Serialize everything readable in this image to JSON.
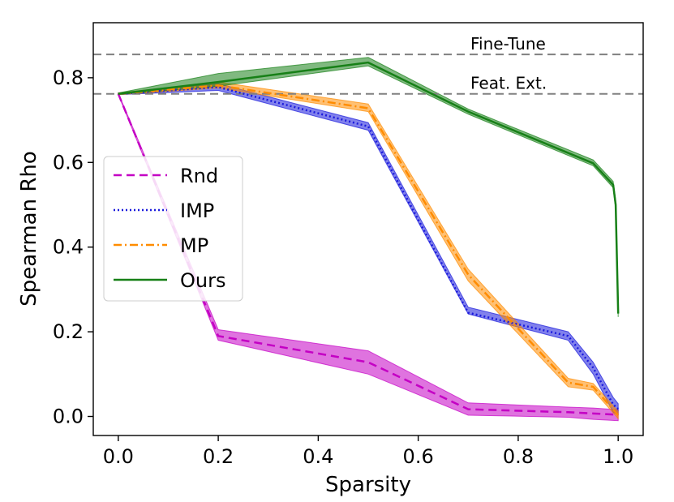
{
  "chart_data": {
    "type": "line",
    "title": "",
    "xlabel": "Sparsity",
    "ylabel": "Spearman Rho",
    "xlim": [
      -0.05,
      1.05
    ],
    "ylim": [
      -0.045,
      0.93
    ],
    "xticks": [
      0.0,
      0.2,
      0.4,
      0.6,
      0.8,
      1.0
    ],
    "xtick_labels": [
      "0.0",
      "0.2",
      "0.4",
      "0.6",
      "0.8",
      "1.0"
    ],
    "yticks": [
      0.0,
      0.2,
      0.4,
      0.6,
      0.8
    ],
    "ytick_labels": [
      "0.0",
      "0.2",
      "0.4",
      "0.6",
      "0.8"
    ],
    "grid": false,
    "legend_position": "center-left",
    "reference_lines": [
      {
        "label": "Fine-Tune",
        "y": 0.855,
        "color": "#808080",
        "style": "dashed"
      },
      {
        "label": "Feat. Ext.",
        "y": 0.762,
        "color": "#808080",
        "style": "dashed"
      }
    ],
    "series": [
      {
        "name": "Rnd",
        "color": "#c400c4",
        "style": "dashed",
        "x": [
          0.0,
          0.2,
          0.5,
          0.7,
          0.9,
          0.95,
          1.0
        ],
        "y": [
          0.762,
          0.19,
          0.128,
          0.017,
          0.01,
          0.007,
          0.004
        ],
        "lower": [
          0.76,
          0.18,
          0.1,
          0.003,
          -0.002,
          -0.007,
          -0.01
        ],
        "upper": [
          0.764,
          0.205,
          0.155,
          0.032,
          0.022,
          0.02,
          0.016
        ]
      },
      {
        "name": "IMP",
        "color": "#1a1adc",
        "style": "dotted",
        "x": [
          0.0,
          0.2,
          0.5,
          0.7,
          0.9,
          0.95,
          0.99,
          1.0
        ],
        "y": [
          0.762,
          0.778,
          0.685,
          0.245,
          0.19,
          0.115,
          0.028,
          0.018
        ],
        "lower": [
          0.76,
          0.77,
          0.676,
          0.242,
          0.18,
          0.1,
          0.01,
          0.004
        ],
        "upper": [
          0.764,
          0.786,
          0.694,
          0.258,
          0.2,
          0.128,
          0.045,
          0.03
        ]
      },
      {
        "name": "MP",
        "color": "#ff8c00",
        "style": "dashdot",
        "x": [
          0.0,
          0.2,
          0.5,
          0.7,
          0.9,
          0.95,
          1.0
        ],
        "y": [
          0.762,
          0.782,
          0.728,
          0.335,
          0.08,
          0.07,
          0.003
        ],
        "lower": [
          0.76,
          0.776,
          0.72,
          0.32,
          0.07,
          0.062,
          -0.005
        ],
        "upper": [
          0.764,
          0.79,
          0.738,
          0.348,
          0.09,
          0.078,
          0.012
        ]
      },
      {
        "name": "Ours",
        "color": "#178017",
        "style": "solid",
        "x": [
          0.0,
          0.2,
          0.5,
          0.7,
          0.95,
          0.99,
          0.995,
          1.0
        ],
        "y": [
          0.762,
          0.79,
          0.836,
          0.72,
          0.598,
          0.547,
          0.5,
          0.243
        ],
        "lower": [
          0.76,
          0.78,
          0.828,
          0.714,
          0.592,
          0.54,
          0.49,
          0.235
        ],
        "upper": [
          0.764,
          0.81,
          0.848,
          0.726,
          0.606,
          0.555,
          0.51,
          0.255
        ]
      }
    ]
  }
}
